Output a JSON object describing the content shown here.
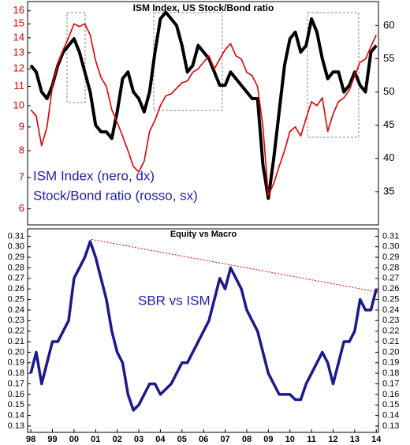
{
  "chart_data": [
    {
      "type": "line",
      "title": "ISM Index, US Stock/Bond ratio",
      "x": [
        1998,
        1998.25,
        1998.5,
        1998.75,
        1999,
        1999.25,
        1999.5,
        1999.75,
        2000,
        2000.25,
        2000.5,
        2000.75,
        2001,
        2001.25,
        2001.5,
        2001.75,
        2002,
        2002.25,
        2002.5,
        2002.75,
        2003,
        2003.25,
        2003.5,
        2003.75,
        2004,
        2004.25,
        2004.5,
        2004.75,
        2005,
        2005.25,
        2005.5,
        2005.75,
        2006,
        2006.25,
        2006.5,
        2006.75,
        2007,
        2007.25,
        2007.5,
        2007.75,
        2008,
        2008.25,
        2008.5,
        2008.75,
        2009,
        2009.25,
        2009.5,
        2009.75,
        2010,
        2010.25,
        2010.5,
        2010.75,
        2011,
        2011.25,
        2011.5,
        2011.75,
        2012,
        2012.25,
        2012.5,
        2012.75,
        2013,
        2013.25,
        2013.5,
        2013.75,
        2014
      ],
      "series": [
        {
          "name": "ISM Index (nero, dx)",
          "color": "#000000",
          "axis": "y2",
          "values": [
            54,
            53,
            50,
            49,
            51,
            54,
            56,
            57,
            58,
            56,
            53,
            50,
            45,
            44,
            44,
            43,
            47,
            52,
            53,
            50,
            49,
            47,
            50,
            56,
            61,
            62,
            61,
            60,
            57,
            53,
            54,
            57,
            56,
            55,
            53,
            51,
            51,
            53,
            52,
            51,
            50,
            49,
            49,
            39,
            34,
            40,
            47,
            54,
            58,
            59,
            56,
            57,
            61,
            59,
            55,
            52,
            53,
            53,
            50,
            51,
            53,
            51,
            50,
            56,
            57
          ]
        },
        {
          "name": "Stock/Bond ratio (rosso, sx)",
          "color": "#e00000",
          "axis": "y",
          "values": [
            9.8,
            9.5,
            8.2,
            9.0,
            11.0,
            12.3,
            13.2,
            14.0,
            15.0,
            14.8,
            15.0,
            14.2,
            12.5,
            11.5,
            11.0,
            9.8,
            9.2,
            8.6,
            8.0,
            7.4,
            7.2,
            7.6,
            8.8,
            9.3,
            10.0,
            10.5,
            10.6,
            10.9,
            11.2,
            11.3,
            11.8,
            12.0,
            12.4,
            12.8,
            12.0,
            12.6,
            13.2,
            13.6,
            12.8,
            12.6,
            11.8,
            11.6,
            11.0,
            9.0,
            6.4,
            6.8,
            7.4,
            8.0,
            8.8,
            9.0,
            8.6,
            9.4,
            10.2,
            10.0,
            10.4,
            8.8,
            9.6,
            10.2,
            10.4,
            10.8,
            11.6,
            12.4,
            12.6,
            13.4,
            14.2
          ]
        }
      ],
      "xlim": [
        1997.85,
        2014.1
      ],
      "yscale": "log",
      "ylim": [
        5.54,
        16.75
      ],
      "yticks": [
        6,
        7,
        8,
        9,
        10,
        11,
        12,
        13,
        14,
        15,
        16
      ],
      "y2lim": [
        30,
        63.6
      ],
      "y2ticks": [
        35,
        40,
        45,
        50,
        55,
        60
      ]
    },
    {
      "type": "line",
      "title": "Equity vs Macro",
      "x": [
        1998,
        1998.25,
        1998.5,
        1998.75,
        1999,
        1999.25,
        1999.5,
        1999.75,
        2000,
        2000.25,
        2000.5,
        2000.75,
        2001,
        2001.25,
        2001.5,
        2001.75,
        2002,
        2002.25,
        2002.5,
        2002.75,
        2003,
        2003.25,
        2003.5,
        2003.75,
        2004,
        2004.25,
        2004.5,
        2004.75,
        2005,
        2005.25,
        2005.5,
        2005.75,
        2006,
        2006.25,
        2006.5,
        2006.75,
        2007,
        2007.25,
        2007.5,
        2007.75,
        2008,
        2008.25,
        2008.5,
        2008.75,
        2009,
        2009.25,
        2009.5,
        2009.75,
        2010,
        2010.25,
        2010.5,
        2010.75,
        2011,
        2011.25,
        2011.5,
        2011.75,
        2012,
        2012.25,
        2012.5,
        2012.75,
        2013,
        2013.25,
        2013.5,
        2013.75,
        2014
      ],
      "series": [
        {
          "name": "SBR vs ISM",
          "color": "#1a1a8c",
          "axis": "y",
          "values": [
            0.18,
            0.2,
            0.17,
            0.19,
            0.21,
            0.21,
            0.22,
            0.23,
            0.27,
            0.28,
            0.29,
            0.305,
            0.29,
            0.27,
            0.25,
            0.22,
            0.2,
            0.19,
            0.16,
            0.145,
            0.15,
            0.16,
            0.17,
            0.17,
            0.16,
            0.165,
            0.17,
            0.18,
            0.19,
            0.19,
            0.2,
            0.21,
            0.22,
            0.23,
            0.25,
            0.27,
            0.26,
            0.28,
            0.27,
            0.26,
            0.24,
            0.23,
            0.22,
            0.2,
            0.18,
            0.17,
            0.16,
            0.16,
            0.16,
            0.155,
            0.155,
            0.17,
            0.18,
            0.19,
            0.2,
            0.19,
            0.17,
            0.19,
            0.21,
            0.21,
            0.22,
            0.25,
            0.24,
            0.24,
            0.26
          ]
        }
      ],
      "trendline": {
        "x": [
          2000.8,
          2014.1
        ],
        "values": [
          0.307,
          0.257
        ],
        "color": "#e00000"
      },
      "xlim": [
        1997.85,
        2014.1
      ],
      "ylim": [
        0.124,
        0.317
      ],
      "yticks": [
        0.13,
        0.14,
        0.15,
        0.16,
        0.17,
        0.18,
        0.19,
        {
          "value": 0.2,
          "label": "0.20"
        },
        0.21,
        0.22,
        0.23,
        0.24,
        0.25,
        0.26,
        0.27,
        0.28,
        0.29,
        {
          "value": 0.3,
          "label": "0.30"
        },
        0.31
      ],
      "xticks": [
        {
          "value": 1998,
          "label": "98"
        },
        {
          "value": 1999,
          "label": "99"
        },
        {
          "value": 2000,
          "label": "00"
        },
        {
          "value": 2001,
          "label": "01"
        },
        {
          "value": 2002,
          "label": "02"
        },
        {
          "value": 2003,
          "label": "03"
        },
        {
          "value": 2004,
          "label": "04"
        },
        {
          "value": 2005,
          "label": "05"
        },
        {
          "value": 2006,
          "label": "06"
        },
        {
          "value": 2007,
          "label": "07"
        },
        {
          "value": 2008,
          "label": "08"
        },
        {
          "value": 2009,
          "label": "09"
        },
        {
          "value": 2010,
          "label": "10"
        },
        {
          "value": 2011,
          "label": "11"
        },
        {
          "value": 2012,
          "label": "12"
        },
        {
          "value": 2013,
          "label": "13"
        },
        {
          "value": 2014,
          "label": "14"
        }
      ]
    }
  ]
}
